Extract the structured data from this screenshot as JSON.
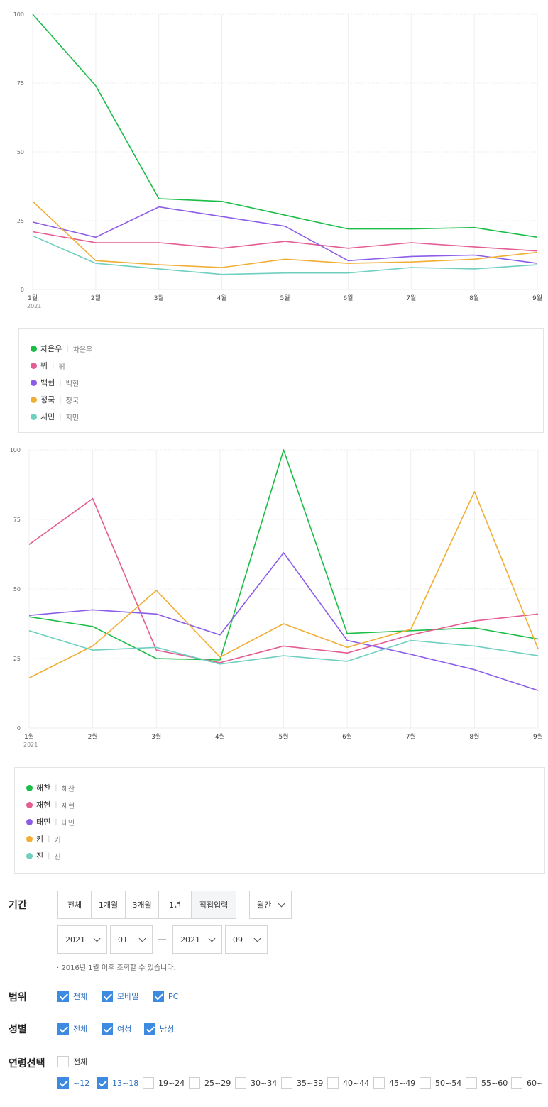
{
  "chart_data": [
    {
      "type": "line",
      "categories": [
        "1월",
        "2월",
        "3월",
        "4월",
        "5월",
        "6월",
        "7월",
        "8월",
        "9월"
      ],
      "year_label": "2021",
      "ylim": [
        0,
        100
      ],
      "yticks": [
        0,
        25,
        50,
        75,
        100
      ],
      "grid": true,
      "series": [
        {
          "name": "차은우",
          "alias": "차은우",
          "color": "#1cbd47",
          "values": [
            100,
            74,
            33,
            32,
            27,
            22,
            22,
            22.5,
            19
          ]
        },
        {
          "name": "뷔",
          "alias": "뷔",
          "color": "#e45d93",
          "values": [
            21,
            17,
            17,
            15,
            17.5,
            15,
            17,
            15.5,
            14
          ]
        },
        {
          "name": "백현",
          "alias": "백현",
          "color": "#8b5ce8",
          "values": [
            24.5,
            19,
            30,
            26.5,
            23,
            10.5,
            12,
            12.5,
            9.5
          ]
        },
        {
          "name": "정국",
          "alias": "정국",
          "color": "#f1ae35",
          "values": [
            32,
            10.5,
            9,
            8,
            11,
            9.5,
            10,
            11,
            13.5
          ]
        },
        {
          "name": "지민",
          "alias": "지민",
          "color": "#6fcfc0",
          "values": [
            19.5,
            9.5,
            7.5,
            5.5,
            6,
            6,
            8,
            7.5,
            9
          ]
        }
      ]
    },
    {
      "type": "line",
      "categories": [
        "1월",
        "2월",
        "3월",
        "4월",
        "5월",
        "6월",
        "7월",
        "8월",
        "9월"
      ],
      "year_label": "2021",
      "ylim": [
        0,
        100
      ],
      "yticks": [
        0,
        25,
        50,
        75,
        100
      ],
      "grid": true,
      "series": [
        {
          "name": "해찬",
          "alias": "해찬",
          "color": "#1cbd47",
          "values": [
            40,
            36.5,
            25,
            24.5,
            100,
            34,
            35,
            36,
            32
          ]
        },
        {
          "name": "재현",
          "alias": "재현",
          "color": "#e45d93",
          "values": [
            66,
            82.5,
            28,
            23.5,
            29.5,
            27,
            33.5,
            38.5,
            41
          ]
        },
        {
          "name": "태민",
          "alias": "태민",
          "color": "#8b5ce8",
          "values": [
            40.5,
            42.5,
            41,
            33.5,
            63,
            31.5,
            26.5,
            21,
            13.5
          ]
        },
        {
          "name": "키",
          "alias": "키",
          "color": "#f1ae35",
          "values": [
            18,
            29.5,
            49.5,
            25.5,
            37.5,
            29,
            35.5,
            85,
            28.5
          ]
        },
        {
          "name": "진",
          "alias": "진",
          "color": "#6fcfc0",
          "values": [
            35,
            28,
            29,
            23,
            26,
            24,
            31.5,
            29.5,
            26
          ]
        }
      ]
    }
  ],
  "filters": {
    "period_label": "기간",
    "period_buttons": [
      "전체",
      "1개월",
      "3개월",
      "1년",
      "직접입력"
    ],
    "interval": "월간",
    "start_year": "2021",
    "start_month": "01",
    "end_year": "2021",
    "end_month": "09",
    "note": "· 2016년 1월 이후 조회할 수 있습니다.",
    "scope_label": "범위",
    "scope_options": [
      {
        "label": "전체",
        "checked": true
      },
      {
        "label": "모바일",
        "checked": true
      },
      {
        "label": "PC",
        "checked": true
      }
    ],
    "gender_label": "성별",
    "gender_options": [
      {
        "label": "전체",
        "checked": true
      },
      {
        "label": "여성",
        "checked": true
      },
      {
        "label": "남성",
        "checked": true
      }
    ],
    "age_label": "연령선택",
    "age_all": {
      "label": "전체",
      "checked": false
    },
    "age_options": [
      {
        "label": "~12",
        "checked": true
      },
      {
        "label": "13~18",
        "checked": true
      },
      {
        "label": "19~24",
        "checked": false
      },
      {
        "label": "25~29",
        "checked": false
      },
      {
        "label": "30~34",
        "checked": false
      },
      {
        "label": "35~39",
        "checked": false
      },
      {
        "label": "40~44",
        "checked": false
      },
      {
        "label": "45~49",
        "checked": false
      },
      {
        "label": "50~54",
        "checked": false
      },
      {
        "label": "55~60",
        "checked": false
      },
      {
        "label": "60~",
        "checked": false
      }
    ]
  }
}
